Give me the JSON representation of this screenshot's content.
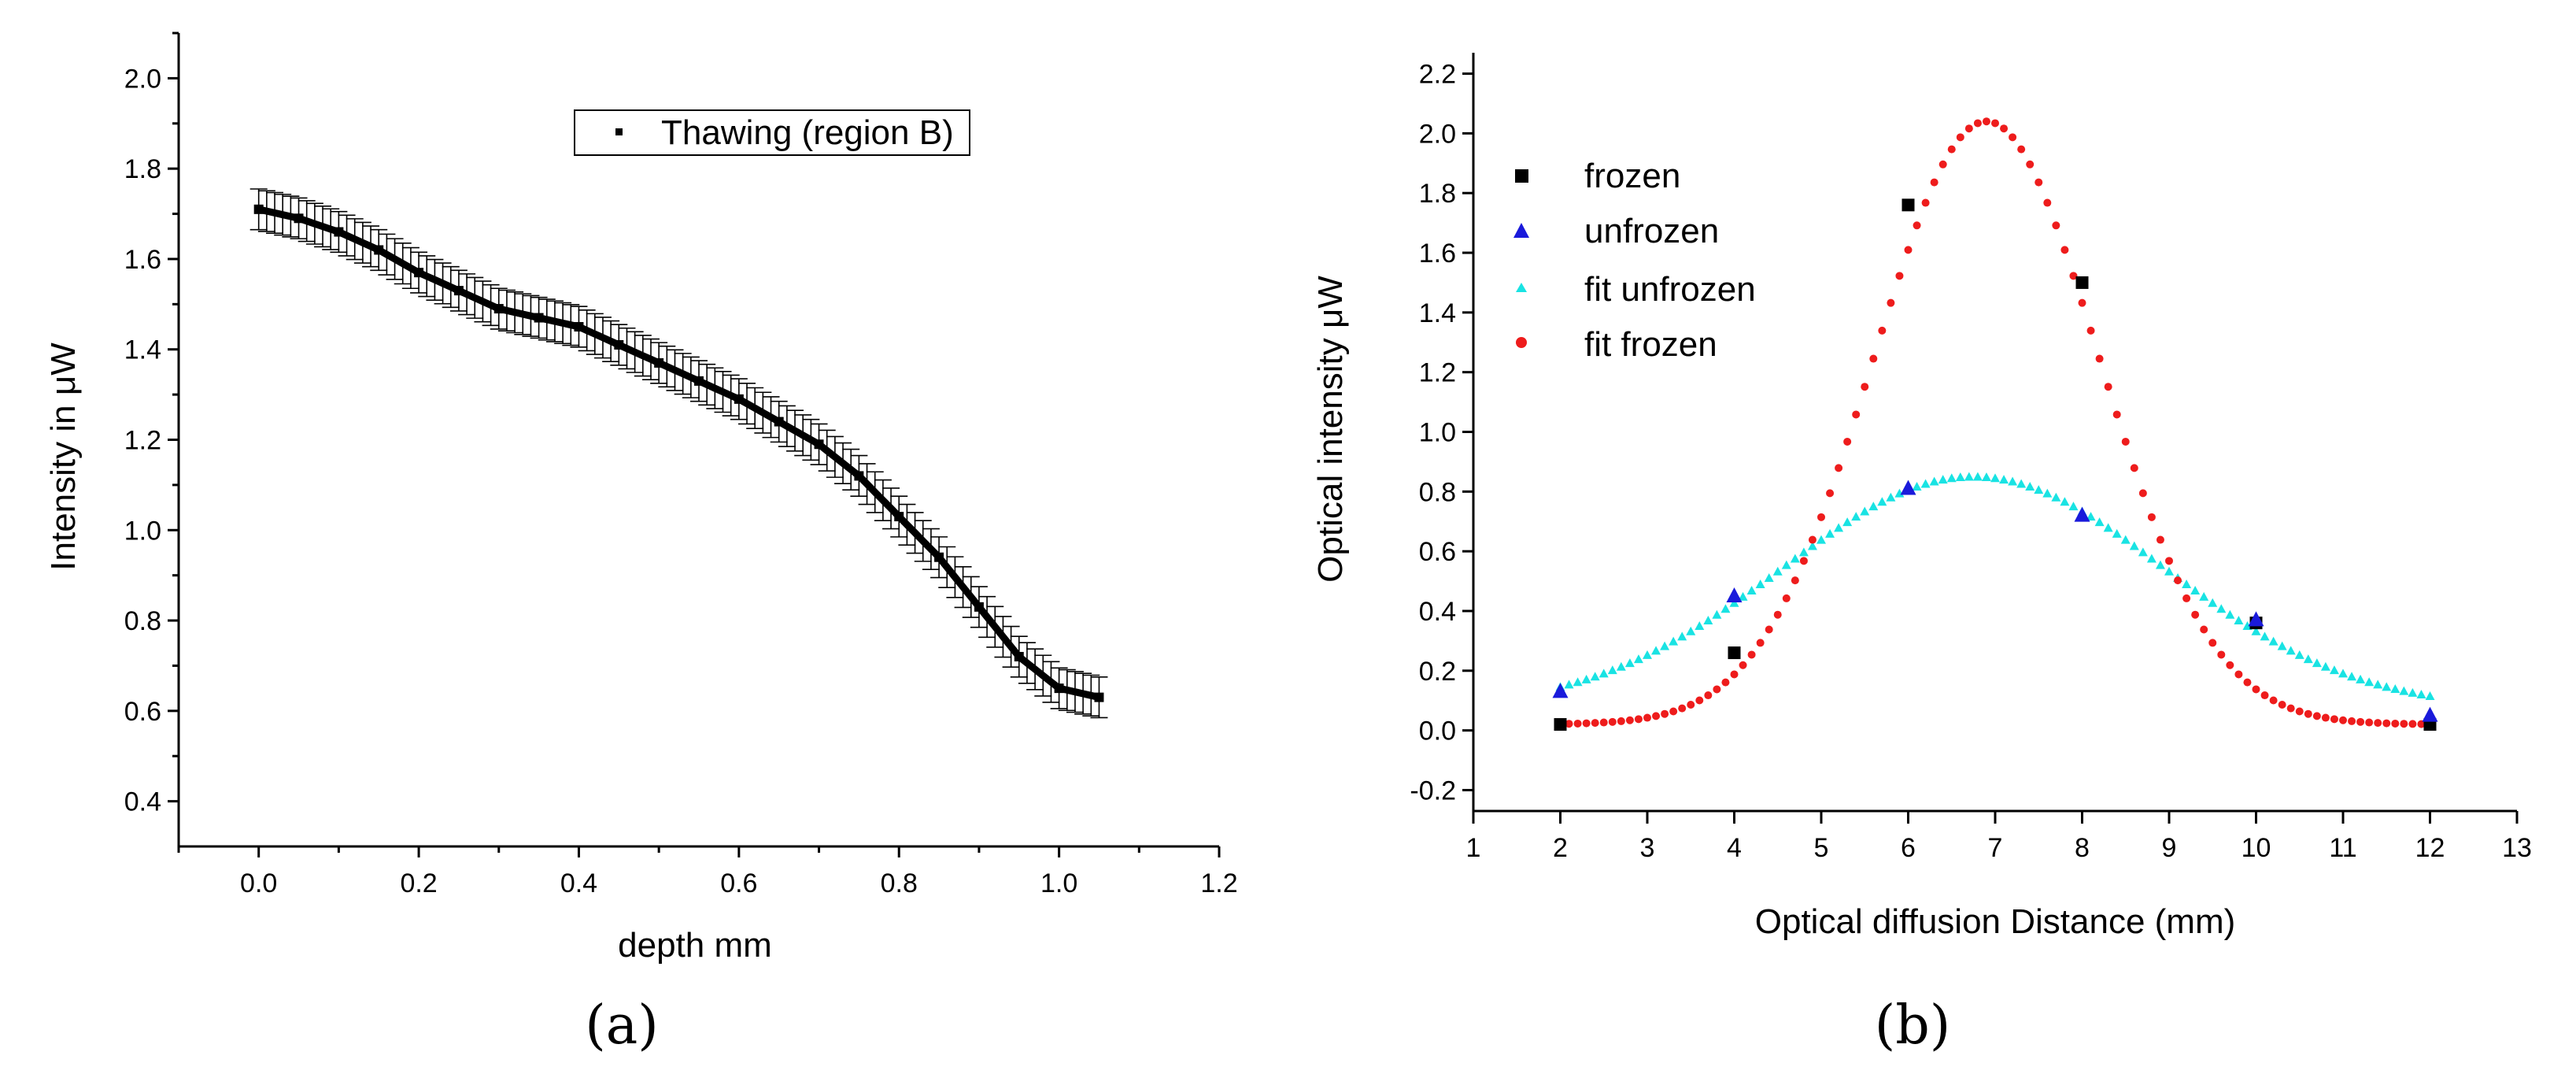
{
  "chart_data": [
    {
      "type": "line",
      "caption": "(a)",
      "xlabel": "depth mm",
      "ylabel": "Intensity in μW",
      "xlim": [
        -0.1,
        1.2
      ],
      "ylim": [
        0.3,
        2.1
      ],
      "xticks": [
        "0.0",
        "0.2",
        "0.4",
        "0.6",
        "0.8",
        "1.0",
        "1.2"
      ],
      "yticks": [
        "0.4",
        "0.6",
        "0.8",
        "1.0",
        "1.2",
        "1.4",
        "1.6",
        "1.8",
        "2.0"
      ],
      "legend": {
        "position": "top-center",
        "label": "Thawing (region B)"
      },
      "series": [
        {
          "name": "Thawing (region B)",
          "error": 0.045,
          "x": [
            0.0,
            0.05,
            0.1,
            0.15,
            0.2,
            0.25,
            0.3,
            0.35,
            0.4,
            0.45,
            0.5,
            0.55,
            0.6,
            0.65,
            0.7,
            0.75,
            0.8,
            0.85,
            0.9,
            0.95,
            1.0,
            1.05
          ],
          "y": [
            1.71,
            1.69,
            1.66,
            1.62,
            1.57,
            1.53,
            1.49,
            1.47,
            1.45,
            1.41,
            1.37,
            1.33,
            1.29,
            1.24,
            1.19,
            1.12,
            1.03,
            0.94,
            0.83,
            0.72,
            0.65,
            0.63
          ]
        }
      ]
    },
    {
      "type": "scatter",
      "caption": "(b)",
      "xlabel": "Optical diffusion Distance (mm)",
      "ylabel": "Optical intensity μW",
      "xlim": [
        1,
        13
      ],
      "ylim": [
        -0.27,
        2.27
      ],
      "xticks": [
        "1",
        "2",
        "3",
        "4",
        "5",
        "6",
        "7",
        "8",
        "9",
        "10",
        "11",
        "12",
        "13"
      ],
      "yticks": [
        "-0.2",
        "0.0",
        "0.2",
        "0.4",
        "0.6",
        "0.8",
        "1.0",
        "1.2",
        "1.4",
        "1.6",
        "1.8",
        "2.0",
        "2.2"
      ],
      "legend": {
        "position": "top-left"
      },
      "series": [
        {
          "name": "frozen",
          "marker": "square",
          "color": "#000000",
          "x": [
            2,
            4,
            6,
            8,
            10,
            12
          ],
          "y": [
            0.02,
            0.26,
            1.76,
            1.5,
            0.36,
            0.02
          ]
        },
        {
          "name": "unfrozen",
          "marker": "triangle",
          "color": "#1a1adb",
          "x": [
            2,
            4,
            6,
            8,
            10,
            12
          ],
          "y": [
            0.13,
            0.45,
            0.81,
            0.72,
            0.37,
            0.05
          ]
        },
        {
          "name": "fit unfrozen",
          "marker": "small-triangle",
          "color": "#19e3e3",
          "fit": {
            "offset": 0.07,
            "amplitude": 0.78,
            "center": 6.75,
            "sigma": 2.2
          },
          "x_range": [
            2,
            12
          ]
        },
        {
          "name": "fit frozen",
          "marker": "dot",
          "color": "#ee1c1c",
          "fit": {
            "offset": 0.02,
            "amplitude": 2.02,
            "center": 6.9,
            "sigma": 1.3
          },
          "x_range": [
            2,
            12
          ]
        }
      ]
    }
  ]
}
